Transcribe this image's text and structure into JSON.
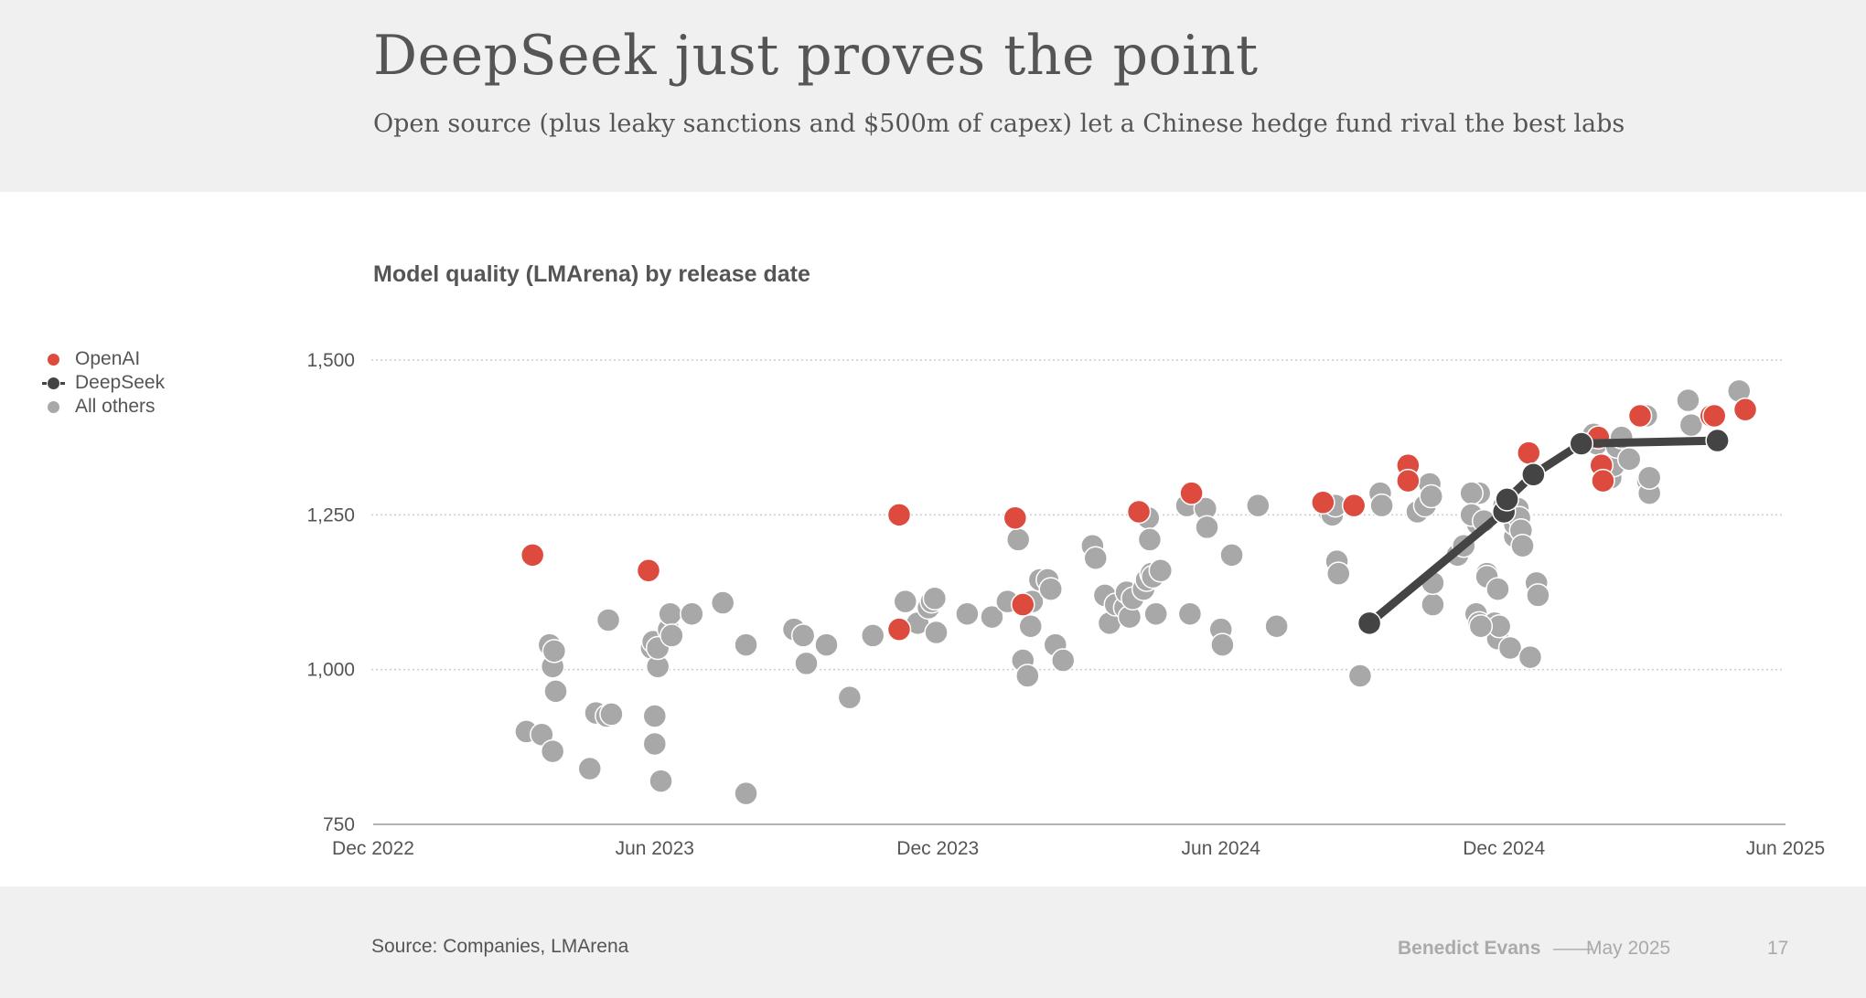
{
  "header": {
    "title": "DeepSeek just proves the point",
    "subtitle": "Open source (plus leaky sanctions and $500m of capex) let a Chinese hedge fund rival the best labs"
  },
  "footer": {
    "source": "Source: Companies, LMArena",
    "author": "Benedict Evans",
    "separator": "——",
    "date": "May 2025",
    "page_number": "17"
  },
  "legend": {
    "items": [
      {
        "label": "OpenAI",
        "color": "#dc4b3e",
        "marker": "dot"
      },
      {
        "label": "DeepSeek",
        "color": "#444444",
        "marker": "line-dot"
      },
      {
        "label": "All others",
        "color": "#a8a8a8",
        "marker": "dot"
      }
    ]
  },
  "chart_data": {
    "type": "scatter",
    "title": "Model quality (LMArena) by release date",
    "xlabel": "",
    "ylabel": "",
    "x_type": "date",
    "xlim": [
      "2022-12-01",
      "2025-06-01"
    ],
    "ylim": [
      750,
      1500
    ],
    "x_ticks": [
      {
        "value": "2022-12-01",
        "label": "Dec 2022"
      },
      {
        "value": "2023-06-01",
        "label": "Jun 2023"
      },
      {
        "value": "2023-12-01",
        "label": "Dec 2023"
      },
      {
        "value": "2024-06-01",
        "label": "Jun 2024"
      },
      {
        "value": "2024-12-01",
        "label": "Dec 2024"
      },
      {
        "value": "2025-06-01",
        "label": "Jun 2025"
      }
    ],
    "y_ticks": [
      {
        "value": 750,
        "label": "750"
      },
      {
        "value": 1000,
        "label": "1,000"
      },
      {
        "value": 1250,
        "label": "1,250"
      },
      {
        "value": 1500,
        "label": "1,500"
      }
    ],
    "grid": "horizontal-dotted",
    "legend_position": "left",
    "colors": {
      "openai": "#dc4b3e",
      "deepseek": "#444444",
      "others": "#a8a8a8",
      "grid": "#cccccc",
      "axis": "#999999"
    },
    "series": [
      {
        "name": "All others",
        "color": "#a8a8a8",
        "points": [
          [
            "2023-03-10",
            900
          ],
          [
            "2023-03-20",
            895
          ],
          [
            "2023-03-25",
            1040
          ],
          [
            "2023-03-27",
            1005
          ],
          [
            "2023-03-27",
            868
          ],
          [
            "2023-03-28",
            1030
          ],
          [
            "2023-03-29",
            965
          ],
          [
            "2023-04-20",
            840
          ],
          [
            "2023-04-24",
            930
          ],
          [
            "2023-05-01",
            925
          ],
          [
            "2023-05-02",
            1080
          ],
          [
            "2023-05-04",
            928
          ],
          [
            "2023-05-30",
            1035
          ],
          [
            "2023-05-31",
            1045
          ],
          [
            "2023-06-01",
            880
          ],
          [
            "2023-06-01",
            925
          ],
          [
            "2023-06-03",
            1005
          ],
          [
            "2023-06-03",
            1035
          ],
          [
            "2023-06-05",
            820
          ],
          [
            "2023-06-10",
            1065
          ],
          [
            "2023-06-11",
            1090
          ],
          [
            "2023-06-12",
            1055
          ],
          [
            "2023-06-25",
            1090
          ],
          [
            "2023-07-15",
            1108
          ],
          [
            "2023-07-30",
            1040
          ],
          [
            "2023-07-30",
            800
          ],
          [
            "2023-08-30",
            1065
          ],
          [
            "2023-09-05",
            1055
          ],
          [
            "2023-09-07",
            1010
          ],
          [
            "2023-09-20",
            1040
          ],
          [
            "2023-10-05",
            955
          ],
          [
            "2023-10-20",
            1055
          ],
          [
            "2023-11-10",
            1110
          ],
          [
            "2023-11-18",
            1075
          ],
          [
            "2023-11-25",
            1100
          ],
          [
            "2023-11-27",
            1110
          ],
          [
            "2023-11-29",
            1115
          ],
          [
            "2023-11-30",
            1060
          ],
          [
            "2023-12-20",
            1090
          ],
          [
            "2024-01-05",
            1085
          ],
          [
            "2024-01-15",
            1110
          ],
          [
            "2024-01-22",
            1210
          ],
          [
            "2024-01-25",
            1015
          ],
          [
            "2024-01-28",
            990
          ],
          [
            "2024-01-30",
            1070
          ],
          [
            "2024-01-31",
            1110
          ],
          [
            "2024-02-05",
            1145
          ],
          [
            "2024-02-10",
            1145
          ],
          [
            "2024-02-12",
            1130
          ],
          [
            "2024-02-15",
            1040
          ],
          [
            "2024-02-20",
            1015
          ],
          [
            "2024-03-10",
            1200
          ],
          [
            "2024-03-12",
            1180
          ],
          [
            "2024-03-18",
            1120
          ],
          [
            "2024-03-21",
            1075
          ],
          [
            "2024-03-25",
            1105
          ],
          [
            "2024-03-31",
            1100
          ],
          [
            "2024-04-01",
            1125
          ],
          [
            "2024-04-03",
            1085
          ],
          [
            "2024-04-05",
            1115
          ],
          [
            "2024-04-12",
            1130
          ],
          [
            "2024-04-14",
            1145
          ],
          [
            "2024-04-15",
            1245
          ],
          [
            "2024-04-16",
            1210
          ],
          [
            "2024-04-17",
            1155
          ],
          [
            "2024-04-18",
            1150
          ],
          [
            "2024-04-20",
            1090
          ],
          [
            "2024-04-23",
            1160
          ],
          [
            "2024-05-10",
            1265
          ],
          [
            "2024-05-12",
            1090
          ],
          [
            "2024-05-22",
            1260
          ],
          [
            "2024-05-23",
            1230
          ],
          [
            "2024-06-01",
            1065
          ],
          [
            "2024-06-02",
            1040
          ],
          [
            "2024-06-08",
            1185
          ],
          [
            "2024-06-25",
            1265
          ],
          [
            "2024-07-07",
            1070
          ],
          [
            "2024-08-10",
            1255
          ],
          [
            "2024-08-12",
            1250
          ],
          [
            "2024-08-14",
            1265
          ],
          [
            "2024-08-15",
            1175
          ],
          [
            "2024-08-16",
            1155
          ],
          [
            "2024-08-30",
            990
          ],
          [
            "2024-09-12",
            1285
          ],
          [
            "2024-09-13",
            1265
          ],
          [
            "2024-10-06",
            1255
          ],
          [
            "2024-10-11",
            1265
          ],
          [
            "2024-10-14",
            1300
          ],
          [
            "2024-10-15",
            1280
          ],
          [
            "2024-10-16",
            1105
          ],
          [
            "2024-10-16",
            1140
          ],
          [
            "2024-11-01",
            1185
          ],
          [
            "2024-11-13",
            1090
          ],
          [
            "2024-11-14",
            1235
          ],
          [
            "2024-11-15",
            1075
          ],
          [
            "2024-11-15",
            1285
          ],
          [
            "2024-11-20",
            1155
          ],
          [
            "2024-11-25",
            1075
          ],
          [
            "2024-11-27",
            1050
          ],
          [
            "2024-11-28",
            1070
          ],
          [
            "2024-11-10",
            1285
          ],
          [
            "2024-11-16",
            1070
          ],
          [
            "2024-12-01",
            1265
          ],
          [
            "2024-12-08",
            1245
          ],
          [
            "2024-11-05",
            1200
          ],
          [
            "2024-11-10",
            1250
          ],
          [
            "2024-11-18",
            1240
          ],
          [
            "2024-11-20",
            1150
          ],
          [
            "2024-11-27",
            1130
          ],
          [
            "2024-12-05",
            1035
          ],
          [
            "2024-12-08",
            1215
          ],
          [
            "2024-12-08",
            1235
          ],
          [
            "2024-12-10",
            1260
          ],
          [
            "2024-12-11",
            1245
          ],
          [
            "2024-12-12",
            1225
          ],
          [
            "2024-12-13",
            1200
          ],
          [
            "2024-12-18",
            1020
          ],
          [
            "2024-12-22",
            1140
          ],
          [
            "2024-12-23",
            1120
          ],
          [
            "2025-01-28",
            1380
          ],
          [
            "2025-01-30",
            1365
          ],
          [
            "2025-02-08",
            1310
          ],
          [
            "2025-02-10",
            1330
          ],
          [
            "2025-02-12",
            1360
          ],
          [
            "2025-02-15",
            1375
          ],
          [
            "2025-02-20",
            1340
          ],
          [
            "2025-03-03",
            1410
          ],
          [
            "2025-03-04",
            1305
          ],
          [
            "2025-03-05",
            1285
          ],
          [
            "2025-03-05",
            1310
          ],
          [
            "2025-03-30",
            1435
          ],
          [
            "2025-04-01",
            1395
          ],
          [
            "2025-05-02",
            1450
          ]
        ]
      },
      {
        "name": "OpenAI",
        "color": "#dc4b3e",
        "points": [
          [
            "2023-03-14",
            1185
          ],
          [
            "2023-05-28",
            1160
          ],
          [
            "2023-11-06",
            1250
          ],
          [
            "2023-11-06",
            1065
          ],
          [
            "2024-01-20",
            1245
          ],
          [
            "2024-01-25",
            1105
          ],
          [
            "2024-04-09",
            1255
          ],
          [
            "2024-05-13",
            1285
          ],
          [
            "2024-08-06",
            1270
          ],
          [
            "2024-08-26",
            1265
          ],
          [
            "2024-09-30",
            1330
          ],
          [
            "2024-09-30",
            1305
          ],
          [
            "2024-12-17",
            1350
          ],
          [
            "2025-01-31",
            1375
          ],
          [
            "2025-02-02",
            1330
          ],
          [
            "2025-02-03",
            1305
          ],
          [
            "2025-02-27",
            1410
          ],
          [
            "2025-04-14",
            1410
          ],
          [
            "2025-04-16",
            1410
          ],
          [
            "2025-05-06",
            1420
          ]
        ]
      },
      {
        "name": "DeepSeek",
        "color": "#444444",
        "line": true,
        "points": [
          [
            "2024-09-05",
            1075
          ],
          [
            "2024-12-01",
            1255
          ],
          [
            "2024-12-03",
            1275
          ],
          [
            "2024-12-20",
            1315
          ],
          [
            "2025-01-20",
            1365
          ],
          [
            "2025-04-18",
            1370
          ]
        ]
      }
    ]
  }
}
